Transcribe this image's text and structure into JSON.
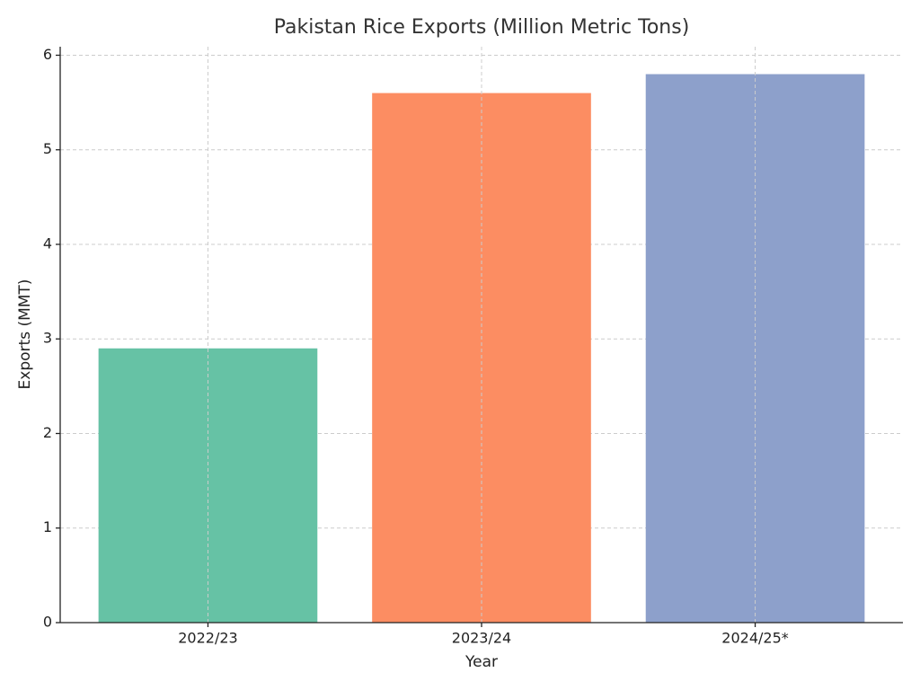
{
  "chart_data": {
    "type": "bar",
    "title": "Pakistan Rice Exports (Million Metric Tons)",
    "x_label": "Year",
    "y_label": "Exports (MMT)",
    "categories": [
      "2022/23",
      "2023/24",
      "2024/25*"
    ],
    "values": [
      2.9,
      5.6,
      5.8
    ],
    "colors": [
      "#66c2a5",
      "#fc8d62",
      "#8da0cb"
    ],
    "ylim": [
      0,
      6.09
    ],
    "yticks": [
      0,
      1,
      2,
      3,
      4,
      5,
      6
    ],
    "grid": true
  }
}
